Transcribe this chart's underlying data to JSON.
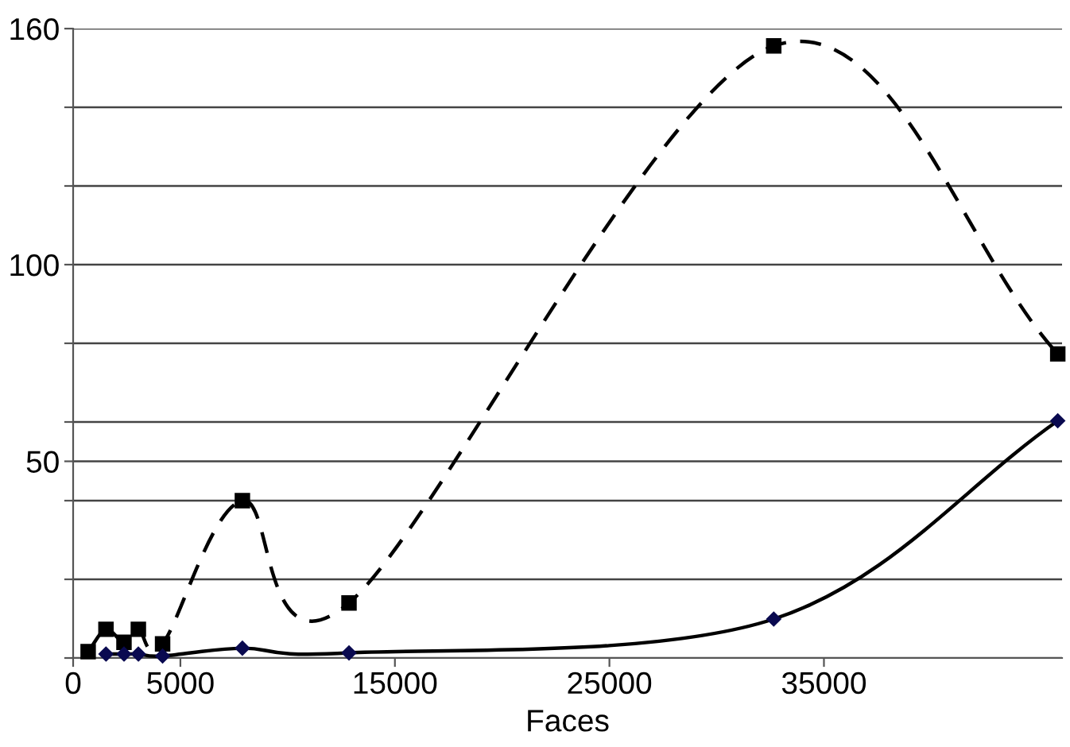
{
  "chart_data": {
    "type": "line",
    "xlabel": "Faces",
    "xlim": [
      0,
      46100
    ],
    "ylim": [
      0,
      160
    ],
    "xticks": [
      0,
      5000,
      15000,
      25000,
      35000
    ],
    "yticks": [
      {
        "value": 0,
        "label": null
      },
      {
        "value": 20,
        "label": null
      },
      {
        "value": 40,
        "label": null
      },
      50,
      {
        "value": 60,
        "label": null
      },
      {
        "value": 80,
        "label": null
      },
      100,
      {
        "value": 120,
        "label": null
      },
      {
        "value": 140,
        "label": null
      },
      160
    ],
    "grid": "y",
    "legend": false,
    "series": [
      {
        "color": "#000000",
        "marker": "square",
        "line_style": "dashed",
        "x": [
          700,
          1530,
          2370,
          3040,
          4170,
          7890,
          12860,
          32660,
          45900
        ],
        "values": [
          1.6,
          7.3,
          4,
          7.3,
          3.6,
          40,
          14,
          155.6,
          77.3
        ]
      },
      {
        "color": "#0a0a50",
        "marker": "diamond",
        "line_style": "solid",
        "x": [
          1530,
          2370,
          3040,
          4170,
          7890,
          12860,
          32660,
          45900
        ],
        "values": [
          1,
          1,
          1,
          0.5,
          2.5,
          1.3,
          9.9,
          60.3
        ]
      }
    ]
  }
}
